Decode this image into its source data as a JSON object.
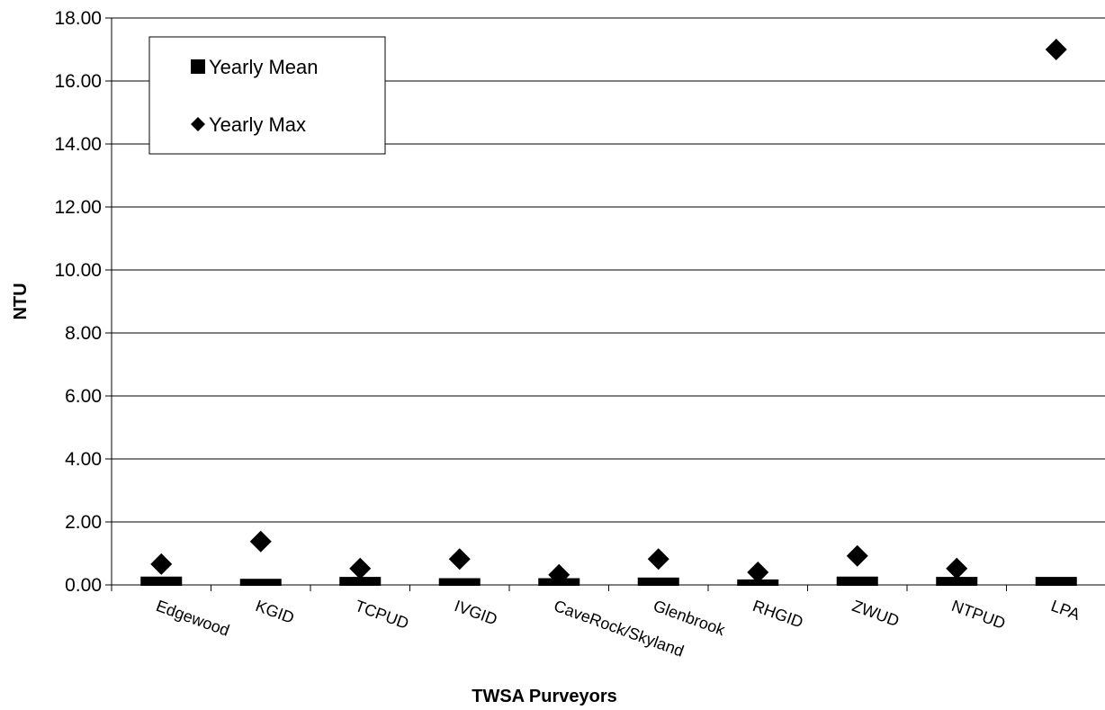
{
  "chart_data": {
    "type": "scatter",
    "title": "",
    "xlabel": "TWSA Purveyors",
    "ylabel": "NTU",
    "ylim": [
      0,
      18
    ],
    "yticks": [
      "0.00",
      "2.00",
      "4.00",
      "6.00",
      "8.00",
      "10.00",
      "12.00",
      "14.00",
      "16.00",
      "18.00"
    ],
    "grid": "horizontal",
    "legend_position": "top-left",
    "categories": [
      "Edgewood",
      "KGID",
      "TCPUD",
      "IVGID",
      "CaveRock/Skyland",
      "Glenbrook",
      "RHGID",
      "ZWUD",
      "NTPUD",
      "LPA"
    ],
    "series": [
      {
        "name": "Yearly Mean",
        "marker": "square",
        "values": [
          0.15,
          0.08,
          0.14,
          0.1,
          0.1,
          0.12,
          0.06,
          0.15,
          0.14,
          0.14
        ]
      },
      {
        "name": "Yearly Max",
        "marker": "diamond",
        "values": [
          0.66,
          1.38,
          0.52,
          0.82,
          0.32,
          0.82,
          0.4,
          0.92,
          0.52,
          17.0
        ]
      }
    ]
  },
  "colors": {
    "marker": "#000000",
    "grid": "#000000",
    "background": "#ffffff"
  }
}
